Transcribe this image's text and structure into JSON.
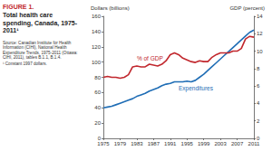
{
  "chart_data": {
    "type": "line",
    "title": "FIGURE 1.",
    "subtitle": "Total health care spending, Canada, 1975-2011¹",
    "source": "Source: Canadian Institute for Health Information (CIHI), National Health Expenditure Trends, 1975-2011 (Ottawa: CIHI, 2011), tables B.1.1, B.1.4.",
    "footnote": "¹ Constant 1997 dollars.",
    "y_label": "Dollars (billions)",
    "y2_label": "GDP (percent)",
    "x": [
      1975,
      1976,
      1977,
      1978,
      1979,
      1980,
      1981,
      1982,
      1983,
      1984,
      1985,
      1986,
      1987,
      1988,
      1989,
      1990,
      1991,
      1992,
      1993,
      1994,
      1995,
      1996,
      1997,
      1998,
      1999,
      2000,
      2001,
      2002,
      2003,
      2004,
      2005,
      2006,
      2007,
      2008,
      2009,
      2010,
      2011
    ],
    "series": [
      {
        "name": "Expenditures",
        "color": "#1f6db5",
        "values": [
          40,
          41,
          42,
          44,
          46,
          48,
          50,
          52,
          55,
          57,
          59,
          62,
          64,
          66,
          69,
          71,
          72,
          74,
          74,
          74,
          75,
          74,
          76,
          80,
          84,
          89,
          94,
          99,
          104,
          109,
          114,
          119,
          124,
          129,
          134,
          139,
          142
        ]
      },
      {
        "name": "% of GDP",
        "color": "#c1272d",
        "axis": "y2",
        "values": [
          7.0,
          7.1,
          7.0,
          7.0,
          6.9,
          7.0,
          7.3,
          8.2,
          8.3,
          8.2,
          8.2,
          8.5,
          8.4,
          8.3,
          8.5,
          8.9,
          9.6,
          9.8,
          9.6,
          9.2,
          9.0,
          8.8,
          8.7,
          8.9,
          8.8,
          8.8,
          9.3,
          9.6,
          9.8,
          9.8,
          9.8,
          10.0,
          10.0,
          10.3,
          11.4,
          11.7,
          11.6
        ]
      }
    ],
    "xlim": [
      1975,
      2011
    ],
    "xticks": [
      1975,
      1979,
      1983,
      1987,
      1991,
      1995,
      1999,
      2003,
      2007,
      2011
    ],
    "ylim": [
      0,
      160
    ],
    "yticks": [
      0,
      20,
      40,
      60,
      80,
      100,
      120,
      140,
      160
    ],
    "y2lim": [
      0,
      14
    ],
    "y2ticks": [
      0,
      2,
      4,
      6,
      8,
      10,
      12,
      14
    ],
    "grid": false
  }
}
